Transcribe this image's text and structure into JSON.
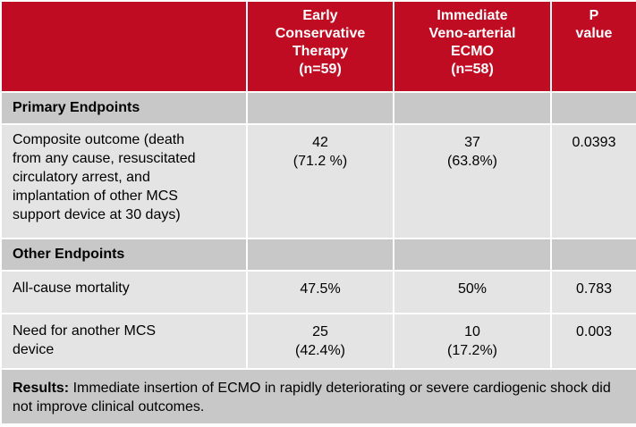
{
  "header": {
    "col1": "",
    "col2": [
      "Early",
      "Conservative",
      "Therapy",
      "(n=59)"
    ],
    "col3": [
      "Immediate",
      "Veno-arterial",
      "ECMO",
      "(n=58)"
    ],
    "col4": [
      "P",
      "value"
    ]
  },
  "sections": {
    "primary_title": "Primary Endpoints",
    "other_title": "Other Endpoints"
  },
  "rows": {
    "composite": {
      "label": [
        "Composite outcome (death",
        "from any cause, resuscitated",
        "circulatory arrest, and",
        "implantation of other MCS",
        "support device at 30 days)"
      ],
      "conservative": [
        "42",
        "(71.2 %)"
      ],
      "ecmo": [
        "37",
        "(63.8%)"
      ],
      "p": "0.0393"
    },
    "mortality": {
      "label": "All-cause mortality",
      "conservative": "47.5%",
      "ecmo": "50%",
      "p": "0.783"
    },
    "mcs": {
      "label": [
        "Need for another MCS",
        "device"
      ],
      "conservative": [
        "25",
        "(42.4%)"
      ],
      "ecmo": [
        "10",
        "(17.2%)"
      ],
      "p": "0.003"
    }
  },
  "results": {
    "label": "Results:",
    "text": " Immediate insertion of ECMO in rapidly deteriorating or severe cardiogenic shock did not improve clinical outcomes."
  }
}
